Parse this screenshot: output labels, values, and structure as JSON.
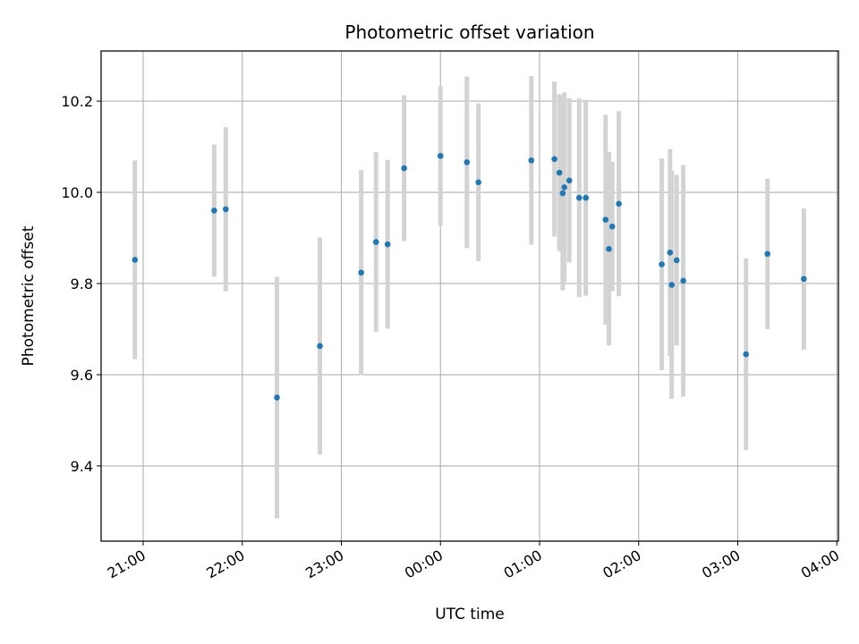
{
  "chart_data": {
    "type": "scatter",
    "title": "Photometric offset variation",
    "xlabel": "UTC time",
    "ylabel": "Photometric offset",
    "x_ticks": [
      "21:00",
      "22:00",
      "23:00",
      "00:00",
      "01:00",
      "02:00",
      "03:00",
      "04:00"
    ],
    "y_ticks": [
      "9.4",
      "9.6",
      "9.8",
      "10.0",
      "10.2"
    ],
    "y_tick_values": [
      9.4,
      9.6,
      9.8,
      10.0,
      10.2
    ],
    "ylim": [
      9.235,
      10.31
    ],
    "xlim": [
      "20:35",
      "04:00"
    ],
    "grid": true,
    "colors": {
      "point": "#1f77b4",
      "errorbar": "#d3d3d3",
      "grid": "#b0b0b0"
    },
    "series": [
      {
        "points": [
          {
            "x": "20:55",
            "y": 9.852,
            "err": 0.218
          },
          {
            "x": "21:43",
            "y": 9.96,
            "err": 0.145
          },
          {
            "x": "21:50",
            "y": 9.963,
            "err": 0.18
          },
          {
            "x": "22:21",
            "y": 9.55,
            "err": 0.265
          },
          {
            "x": "22:47",
            "y": 9.663,
            "err": 0.238
          },
          {
            "x": "23:12",
            "y": 9.824,
            "err": 0.225
          },
          {
            "x": "23:21",
            "y": 9.891,
            "err": 0.197
          },
          {
            "x": "23:28",
            "y": 9.886,
            "err": 0.185
          },
          {
            "x": "23:38",
            "y": 10.053,
            "err": 0.16
          },
          {
            "x": "00:00",
            "y": 10.08,
            "err": 0.153
          },
          {
            "x": "00:16",
            "y": 10.066,
            "err": 0.188
          },
          {
            "x": "00:23",
            "y": 10.022,
            "err": 0.173
          },
          {
            "x": "00:55",
            "y": 10.07,
            "err": 0.185
          },
          {
            "x": "01:09",
            "y": 10.073,
            "err": 0.17
          },
          {
            "x": "01:12",
            "y": 10.043,
            "err": 0.172
          },
          {
            "x": "01:14",
            "y": 9.998,
            "err": 0.213
          },
          {
            "x": "01:15",
            "y": 10.011,
            "err": 0.208
          },
          {
            "x": "01:18",
            "y": 10.026,
            "err": 0.18
          },
          {
            "x": "01:24",
            "y": 9.988,
            "err": 0.218
          },
          {
            "x": "01:28",
            "y": 9.988,
            "err": 0.215
          },
          {
            "x": "01:40",
            "y": 9.94,
            "err": 0.23
          },
          {
            "x": "01:42",
            "y": 9.876,
            "err": 0.212
          },
          {
            "x": "01:44",
            "y": 9.925,
            "err": 0.142
          },
          {
            "x": "01:48",
            "y": 9.975,
            "err": 0.203
          },
          {
            "x": "02:14",
            "y": 9.842,
            "err": 0.232
          },
          {
            "x": "02:19",
            "y": 9.868,
            "err": 0.227
          },
          {
            "x": "02:20",
            "y": 9.797,
            "err": 0.25
          },
          {
            "x": "02:23",
            "y": 9.851,
            "err": 0.187
          },
          {
            "x": "02:27",
            "y": 9.806,
            "err": 0.254
          },
          {
            "x": "03:05",
            "y": 9.645,
            "err": 0.21
          },
          {
            "x": "03:18",
            "y": 9.865,
            "err": 0.165
          },
          {
            "x": "03:40",
            "y": 9.81,
            "err": 0.155
          }
        ]
      }
    ]
  }
}
